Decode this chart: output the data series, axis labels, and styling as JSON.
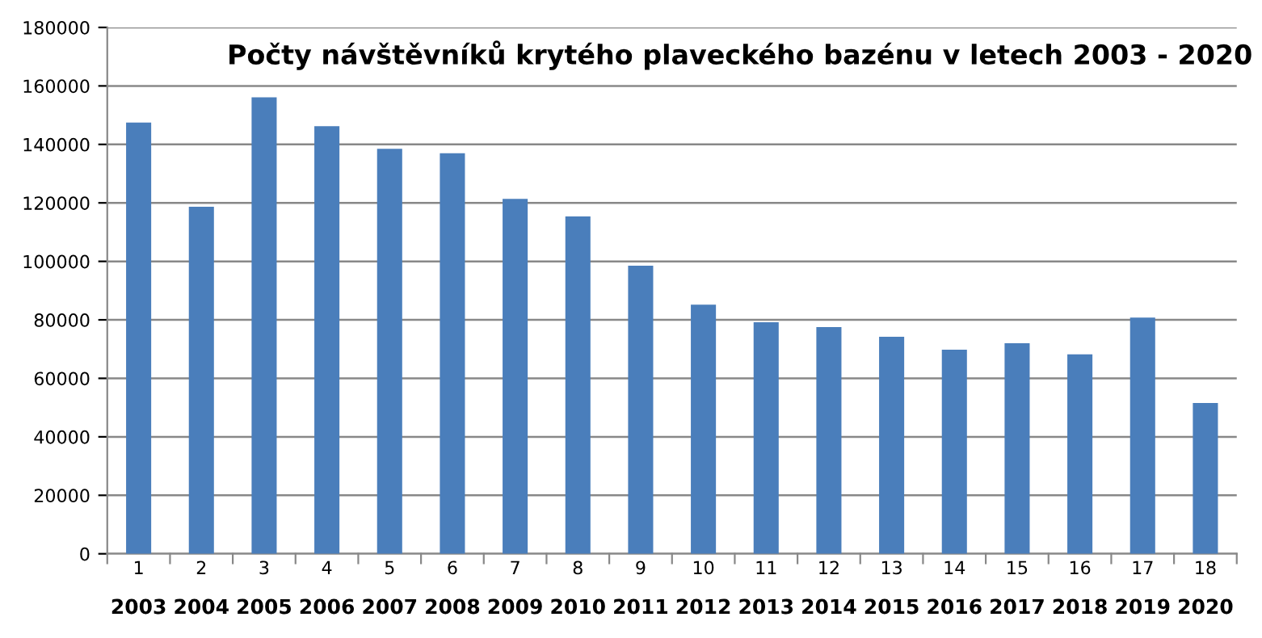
{
  "chart_data": {
    "type": "bar",
    "title": "Počty návštěvníků krytého plaveckého bazénu v letech 2003 - 2020",
    "categories": [
      "1\n2003",
      "2\n2004",
      "3\n2005",
      "4\n2006",
      "5\n2007",
      "6\n2008",
      "7\n2009",
      "8\n2010",
      "9\n2011",
      "10\n2012",
      "11\n2013",
      "12\n2014",
      "13\n2015",
      "14\n2016",
      "15\n2017",
      "16\n2018",
      "17\n2019",
      "18\n2020"
    ],
    "values": [
      147500,
      118700,
      156100,
      146200,
      138500,
      137000,
      121400,
      115400,
      98500,
      85200,
      79200,
      77500,
      74200,
      69800,
      72000,
      68200,
      80800,
      51600
    ],
    "color": "#4a7ebb",
    "ylim": [
      0,
      180000
    ],
    "yticks": [
      0,
      20000,
      40000,
      60000,
      80000,
      100000,
      120000,
      140000,
      160000,
      180000
    ],
    "grid": "y"
  }
}
